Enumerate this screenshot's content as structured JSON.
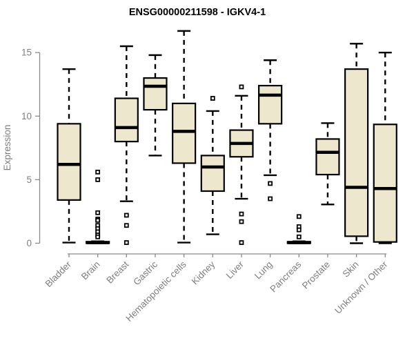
{
  "chart_data": {
    "type": "boxplot",
    "title": "ENSG00000211598 - IGKV4-1",
    "ylabel": "Expression",
    "xlabel": "",
    "ylim": [
      0,
      15
    ],
    "yticks": [
      0,
      5,
      10,
      15
    ],
    "grid": false,
    "legend": "none",
    "box_fill": "#ece7cd",
    "box_stroke": "#000000",
    "axis_color": "#8a8a8a",
    "text_color": "#7e7e7e",
    "title_color": "#000000",
    "background": "#ffffff",
    "categories": [
      "Bladder",
      "Brain",
      "Breast",
      "Gastric",
      "Hematopoietic cells",
      "Kidney",
      "Liver",
      "Lung",
      "Pancreas",
      "Prostate",
      "Skin",
      "Unknown / Other"
    ],
    "series": [
      {
        "name": "Bladder",
        "low": 0.05,
        "q1": 3.4,
        "median": 6.2,
        "q3": 9.4,
        "high": 13.7,
        "outliers": []
      },
      {
        "name": "Brain",
        "low": 0.0,
        "q1": 0.0,
        "median": 0.05,
        "q3": 0.12,
        "high": 0.15,
        "outliers": [
          5.6,
          5.0,
          2.4,
          1.9,
          1.8,
          1.4,
          1.15,
          0.9,
          0.65,
          0.5
        ]
      },
      {
        "name": "Breast",
        "low": 3.3,
        "q1": 8.0,
        "median": 9.1,
        "q3": 11.4,
        "high": 15.5,
        "outliers": [
          2.2,
          1.4,
          0.05
        ]
      },
      {
        "name": "Gastric",
        "low": 6.9,
        "q1": 10.5,
        "median": 12.35,
        "q3": 13.0,
        "high": 14.8,
        "outliers": []
      },
      {
        "name": "Hematopoietic cells",
        "low": 0.05,
        "q1": 6.3,
        "median": 8.8,
        "q3": 11.0,
        "high": 16.7,
        "outliers": []
      },
      {
        "name": "Kidney",
        "low": 0.7,
        "q1": 4.1,
        "median": 6.0,
        "q3": 6.9,
        "high": 10.4,
        "outliers": [
          11.4
        ]
      },
      {
        "name": "Liver",
        "low": 3.5,
        "q1": 6.8,
        "median": 7.85,
        "q3": 8.9,
        "high": 11.6,
        "outliers": [
          12.3,
          2.3,
          1.7,
          0.05
        ]
      },
      {
        "name": "Lung",
        "low": 5.35,
        "q1": 9.4,
        "median": 11.65,
        "q3": 12.4,
        "high": 14.4,
        "outliers": [
          4.7,
          3.5
        ]
      },
      {
        "name": "Pancreas",
        "low": 0.0,
        "q1": 0.0,
        "median": 0.05,
        "q3": 0.12,
        "high": 0.15,
        "outliers": [
          2.1,
          1.3,
          1.05,
          0.5
        ]
      },
      {
        "name": "Prostate",
        "low": 3.05,
        "q1": 5.4,
        "median": 7.15,
        "q3": 8.2,
        "high": 9.45,
        "outliers": []
      },
      {
        "name": "Skin",
        "low": 0.0,
        "q1": 0.55,
        "median": 4.4,
        "q3": 13.7,
        "high": 15.7,
        "outliers": []
      },
      {
        "name": "Unknown / Other",
        "low": 0.0,
        "q1": 0.1,
        "median": 4.3,
        "q3": 9.35,
        "high": 15.0,
        "outliers": []
      }
    ]
  }
}
